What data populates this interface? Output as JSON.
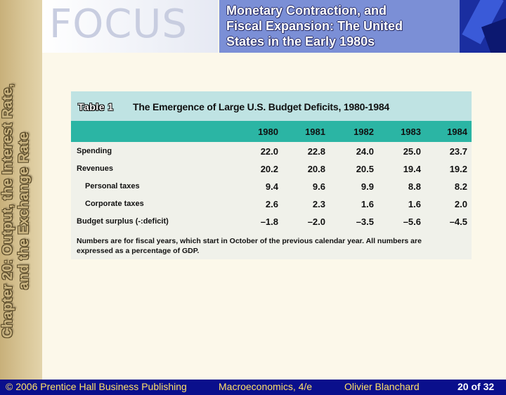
{
  "sidebar": {
    "line1": "Chapter 20: Output, the Interest Rate,",
    "line2": "and the Exchange Rate"
  },
  "header": {
    "focus_word": "FOCUS",
    "title_lines": [
      "Monetary Contraction, and",
      "Fiscal Expansion: The United",
      "States in the Early 1980s"
    ]
  },
  "table": {
    "label": "Table 1",
    "title": "The Emergence of Large U.S. Budget Deficits, 1980-1984",
    "years": [
      "1980",
      "1981",
      "1982",
      "1983",
      "1984"
    ],
    "rows": [
      {
        "label": "Spending",
        "values": [
          "22.0",
          "22.8",
          "24.0",
          "25.0",
          "23.7"
        ]
      },
      {
        "label": "Revenues",
        "values": [
          "20.2",
          "20.8",
          "20.5",
          "19.4",
          "19.2"
        ]
      },
      {
        "label": "Personal taxes",
        "values": [
          "9.4",
          "9.6",
          "9.9",
          "8.8",
          "8.2"
        ]
      },
      {
        "label": "Corporate taxes",
        "values": [
          "2.6",
          "2.3",
          "1.6",
          "1.6",
          "2.0"
        ]
      },
      {
        "label": "Budget surplus (-:deficit)",
        "values": [
          "–1.8",
          "–2.0",
          "–3.5",
          "–5.6",
          "–4.5"
        ]
      }
    ],
    "footnote": "Numbers are for fiscal years, which start in October of the previous calendar year.  All numbers are expressed as a percentage of GDP."
  },
  "footer": {
    "copyright": "© 2006 Prentice Hall Business Publishing",
    "book": "Macroeconomics, 4/e",
    "author": "Olivier Blanchard",
    "page": "20 of 32"
  }
}
